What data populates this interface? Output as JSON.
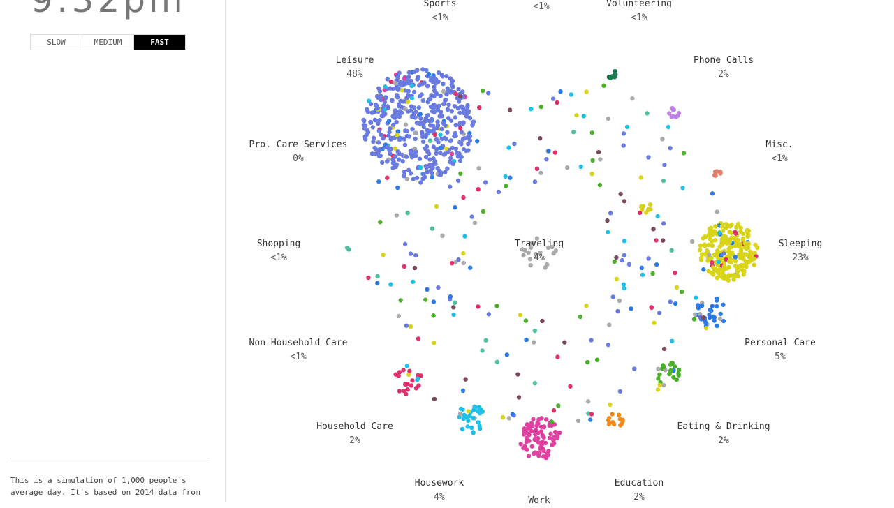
{
  "clock": "9:32pm",
  "speeds": [
    {
      "label": "SLOW",
      "active": false
    },
    {
      "label": "MEDIUM",
      "active": false
    },
    {
      "label": "FAST",
      "active": true
    }
  ],
  "description": "This is a simulation of 1,000 people's average day. It's based on 2014 data from",
  "activities": [
    {
      "name": "Sports",
      "pct": "<1%",
      "color": "#6a7be0"
    },
    {
      "name": "",
      "pct": "<1%",
      "color": "#6a7be0"
    },
    {
      "name": "Volunteering",
      "pct": "<1%",
      "color": "#1a7a50"
    },
    {
      "name": "Phone Calls",
      "pct": "2%",
      "color": "#c080e8"
    },
    {
      "name": "Misc.",
      "pct": "<1%",
      "color": "#e0806a"
    },
    {
      "name": "Sleeping",
      "pct": "23%",
      "color": "#d8d41a"
    },
    {
      "name": "Personal Care",
      "pct": "5%",
      "color": "#2c7be5"
    },
    {
      "name": "Eating & Drinking",
      "pct": "2%",
      "color": "#4caf2a"
    },
    {
      "name": "Education",
      "pct": "2%",
      "color": "#f08a1a"
    },
    {
      "name": "Work",
      "pct": "",
      "color": "#e0409f"
    },
    {
      "name": "Housework",
      "pct": "4%",
      "color": "#1ec0e6"
    },
    {
      "name": "Household Care",
      "pct": "2%",
      "color": "#e0306a"
    },
    {
      "name": "Non-Household Care",
      "pct": "<1%",
      "color": "#7a4a5a"
    },
    {
      "name": "Shopping",
      "pct": "<1%",
      "color": "#50c0a0"
    },
    {
      "name": "Pro. Care Services",
      "pct": "0%",
      "color": "#aaaaaa"
    },
    {
      "name": "Leisure",
      "pct": "48%",
      "color": "#6a7be0"
    },
    {
      "name": "Traveling",
      "pct": "4%",
      "color": "#aaaaaa"
    }
  ]
}
